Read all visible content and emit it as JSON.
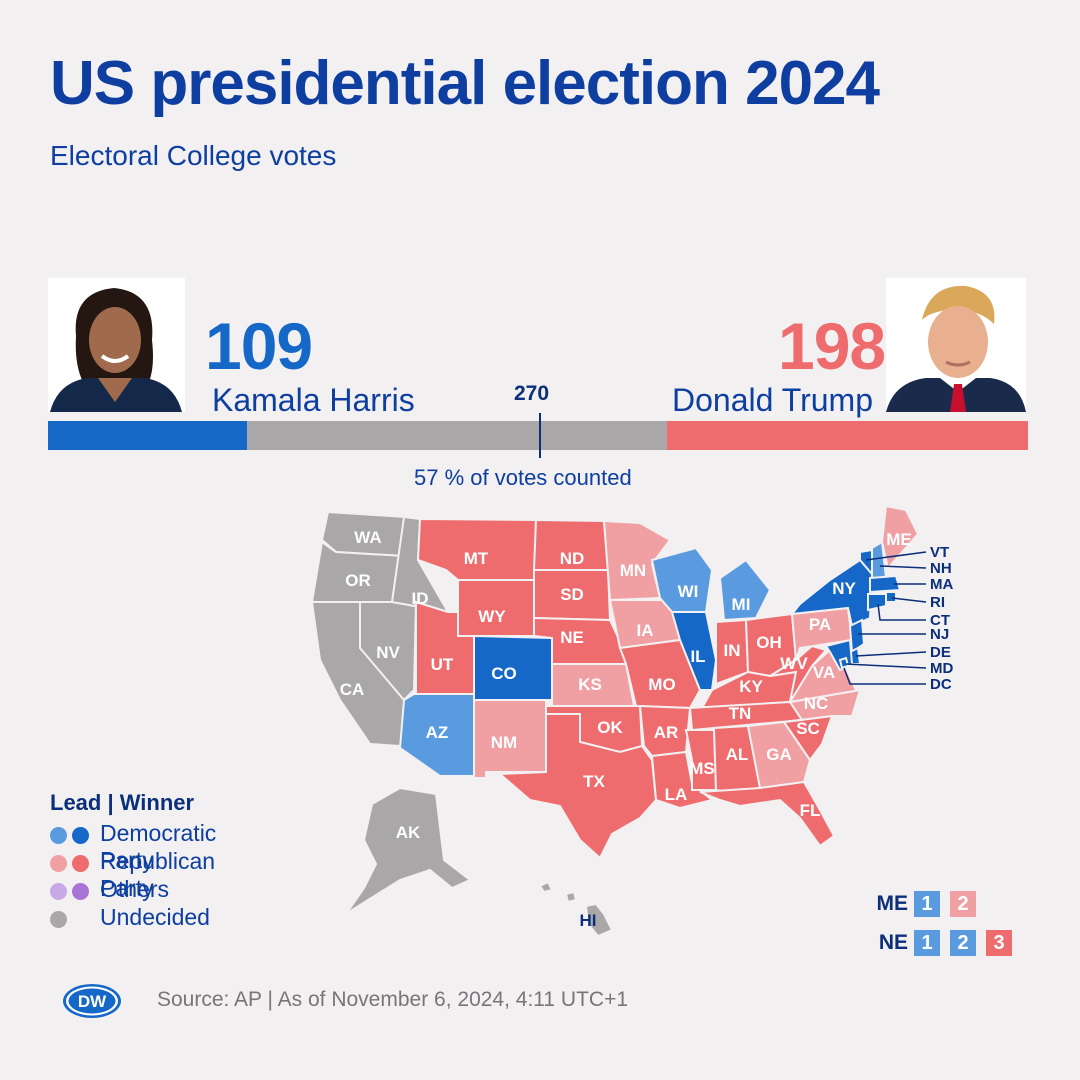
{
  "title": "US presidential election 2024",
  "subtitle": "Electoral College votes",
  "harris": {
    "votes": "109",
    "name": "Kamala Harris"
  },
  "trump": {
    "votes": "198",
    "name": "Donald Trump"
  },
  "threshold": "270",
  "counted_label": "57 % of votes counted",
  "chart_data": {
    "type": "bar",
    "total_electoral_votes": 538,
    "threshold": 270,
    "series": [
      {
        "name": "Kamala Harris",
        "value": 109,
        "color": "#1668c8"
      },
      {
        "name": "Donald Trump",
        "value": 198,
        "color": "#ee6b6e"
      }
    ],
    "undecided_color": "#a9a7a7"
  },
  "colors": {
    "dem_lead": "#5a9be0",
    "dem_win": "#1668c8",
    "rep_lead": "#f0a0a3",
    "rep_win": "#ee6b6e",
    "others_lead": "#c9a8e6",
    "others_win": "#a874d8",
    "undecided": "#a9a7a7"
  },
  "map_states": {
    "WA": "undecided",
    "OR": "undecided",
    "CA": "undecided",
    "NV": "undecided",
    "ID": "undecided",
    "AK": "undecided",
    "HI": "undecided",
    "MT": "rep_win",
    "WY": "rep_win",
    "UT": "rep_win",
    "ND": "rep_win",
    "SD": "rep_win",
    "NE": "rep_win",
    "OK": "rep_win",
    "TX": "rep_win",
    "MO": "rep_win",
    "AR": "rep_win",
    "LA": "rep_win",
    "MS": "rep_win",
    "AL": "rep_win",
    "TN": "rep_win",
    "KY": "rep_win",
    "IN": "rep_win",
    "OH": "rep_win",
    "WV": "rep_win",
    "SC": "rep_win",
    "FL": "rep_win",
    "KS": "rep_lead",
    "IA": "rep_lead",
    "MN": "rep_lead",
    "NM": "rep_lead",
    "GA": "rep_lead",
    "NC": "rep_lead",
    "VA": "rep_lead",
    "PA": "rep_lead",
    "ME": "rep_lead",
    "CO": "dem_win",
    "IL": "dem_win",
    "NY": "dem_win",
    "VT": "dem_win",
    "MA": "dem_win",
    "RI": "dem_win",
    "CT": "dem_win",
    "NJ": "dem_win",
    "DE": "dem_win",
    "MD": "dem_win",
    "DC": "dem_win",
    "AZ": "dem_lead",
    "WI": "dem_lead",
    "MI": "dem_lead",
    "NH": "dem_lead"
  },
  "map_labels": {
    "WA": "WA",
    "OR": "OR",
    "CA": "CA",
    "NV": "NV",
    "ID": "ID",
    "MT": "MT",
    "WY": "WY",
    "UT": "UT",
    "AZ": "AZ",
    "CO": "CO",
    "NM": "NM",
    "ND": "ND",
    "SD": "SD",
    "NE": "NE",
    "KS": "KS",
    "OK": "OK",
    "TX": "TX",
    "MN": "MN",
    "IA": "IA",
    "MO": "MO",
    "AR": "AR",
    "LA": "LA",
    "WI": "WI",
    "IL": "IL",
    "MI": "MI",
    "IN": "IN",
    "OH": "OH",
    "KY": "KY",
    "TN": "TN",
    "MS": "MS",
    "AL": "AL",
    "GA": "GA",
    "FL": "FL",
    "SC": "SC",
    "NC": "NC",
    "VA": "VA",
    "WV": "WV",
    "PA": "PA",
    "NY": "NY",
    "ME": "ME",
    "AK": "AK",
    "HI": "HI",
    "VT": "VT",
    "NH": "NH",
    "MA": "MA",
    "RI": "RI",
    "CT": "CT",
    "NJ": "NJ",
    "DE": "DE",
    "MD": "MD",
    "DC": "DC"
  },
  "legend": {
    "title": "Lead | Winner",
    "items": [
      {
        "label": "Democratic Party",
        "lead": "#5a9be0",
        "win": "#1668c8"
      },
      {
        "label": "Republican Party",
        "lead": "#f0a0a3",
        "win": "#ee6b6e"
      },
      {
        "label": "Others",
        "lead": "#c9a8e6",
        "win": "#a874d8"
      },
      {
        "label": "Undecided",
        "lead": "#a9a7a7",
        "win": ""
      }
    ]
  },
  "split_states": {
    "ME": {
      "code": "ME",
      "districts": [
        {
          "n": "1",
          "status": "dem_lead"
        },
        {
          "n": "2",
          "status": "rep_lead"
        }
      ]
    },
    "NE": {
      "code": "NE",
      "districts": [
        {
          "n": "1",
          "status": "dem_lead"
        },
        {
          "n": "2",
          "status": "dem_lead"
        },
        {
          "n": "3",
          "status": "rep_win"
        }
      ]
    }
  },
  "logo": "DW",
  "source": "Source: AP | As of November 6, 2024, 4:11 UTC+1"
}
